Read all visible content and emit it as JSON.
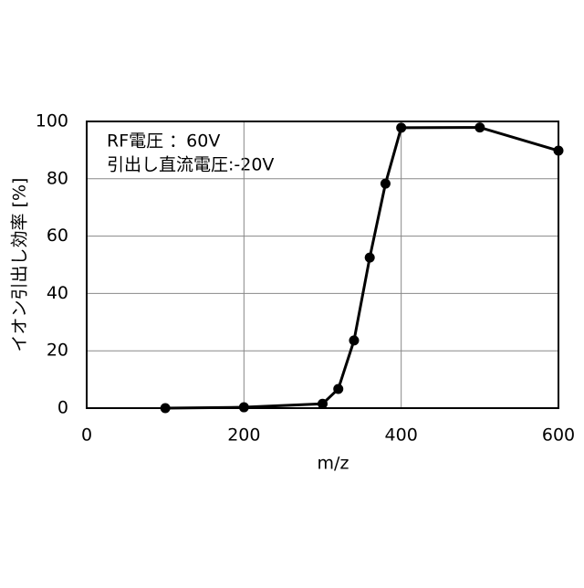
{
  "chart_data": {
    "type": "line",
    "x_label": "m/z",
    "y_label": "イオン引出し効率 [%]",
    "annotations": [
      "RF電圧 ：60V",
      "引出し直流電圧:-20V"
    ],
    "x": [
      100,
      200,
      300,
      320,
      340,
      360,
      380,
      400,
      500,
      600
    ],
    "series": [
      {
        "color": "#000000",
        "values": [
          0,
          0.3,
          1.5,
          6.7,
          23.6,
          52.5,
          78.3,
          97.8,
          97.9,
          89.8
        ]
      }
    ],
    "xlim": [
      0,
      600
    ],
    "xticks": [
      0,
      200,
      400,
      600
    ],
    "ylim": [
      0,
      100
    ],
    "yticks": [
      0,
      20,
      40,
      60,
      80,
      100
    ],
    "grid": true
  }
}
